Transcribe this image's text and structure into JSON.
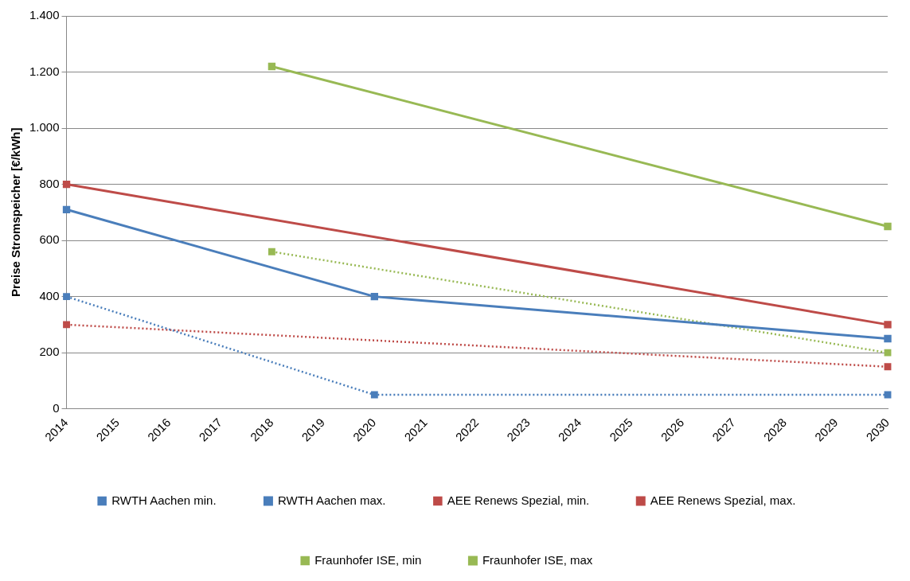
{
  "chart_data": {
    "type": "line",
    "ylabel": "Preise Stromspeicher [€/kWh]",
    "categories": [
      "2014",
      "2015",
      "2016",
      "2017",
      "2018",
      "2019",
      "2020",
      "2021",
      "2022",
      "2023",
      "2024",
      "2025",
      "2026",
      "2027",
      "2028",
      "2029",
      "2030"
    ],
    "series": [
      {
        "name": "RWTH Aachen min.",
        "color": "#4a7ebb",
        "line_style": "dotted",
        "values": [
          400,
          null,
          null,
          null,
          null,
          null,
          50,
          null,
          null,
          null,
          null,
          null,
          null,
          null,
          null,
          null,
          50
        ]
      },
      {
        "name": "RWTH Aachen max.",
        "color": "#4a7ebb",
        "line_style": "solid",
        "values": [
          710,
          null,
          null,
          null,
          null,
          null,
          400,
          null,
          null,
          null,
          null,
          null,
          null,
          null,
          null,
          null,
          250
        ]
      },
      {
        "name": "AEE Renews Spezial, min.",
        "color": "#be4b48",
        "line_style": "dotted",
        "values": [
          300,
          null,
          null,
          null,
          null,
          null,
          null,
          null,
          null,
          null,
          null,
          null,
          null,
          null,
          null,
          null,
          150
        ]
      },
      {
        "name": "AEE Renews Spezial, max.",
        "color": "#be4b48",
        "line_style": "solid",
        "values": [
          800,
          null,
          null,
          null,
          null,
          null,
          null,
          null,
          null,
          null,
          null,
          null,
          null,
          null,
          null,
          null,
          300
        ]
      },
      {
        "name": "Fraunhofer ISE, min",
        "color": "#98b954",
        "line_style": "dotted",
        "values": [
          null,
          null,
          null,
          null,
          560,
          null,
          null,
          null,
          null,
          null,
          null,
          null,
          null,
          null,
          null,
          null,
          200
        ]
      },
      {
        "name": "Fraunhofer ISE, max",
        "color": "#98b954",
        "line_style": "solid",
        "values": [
          null,
          null,
          null,
          null,
          1220,
          null,
          null,
          null,
          null,
          null,
          null,
          null,
          null,
          null,
          null,
          null,
          650
        ]
      }
    ],
    "ylim": [
      0,
      1400
    ],
    "yticks": [
      0,
      200,
      400,
      600,
      800,
      {
        "value": 1000,
        "label": "1.000"
      },
      {
        "value": 1200,
        "label": "1.200"
      },
      {
        "value": 1400,
        "label": "1.400"
      }
    ],
    "grid": "y",
    "legend": "bottom",
    "marker": "square"
  }
}
